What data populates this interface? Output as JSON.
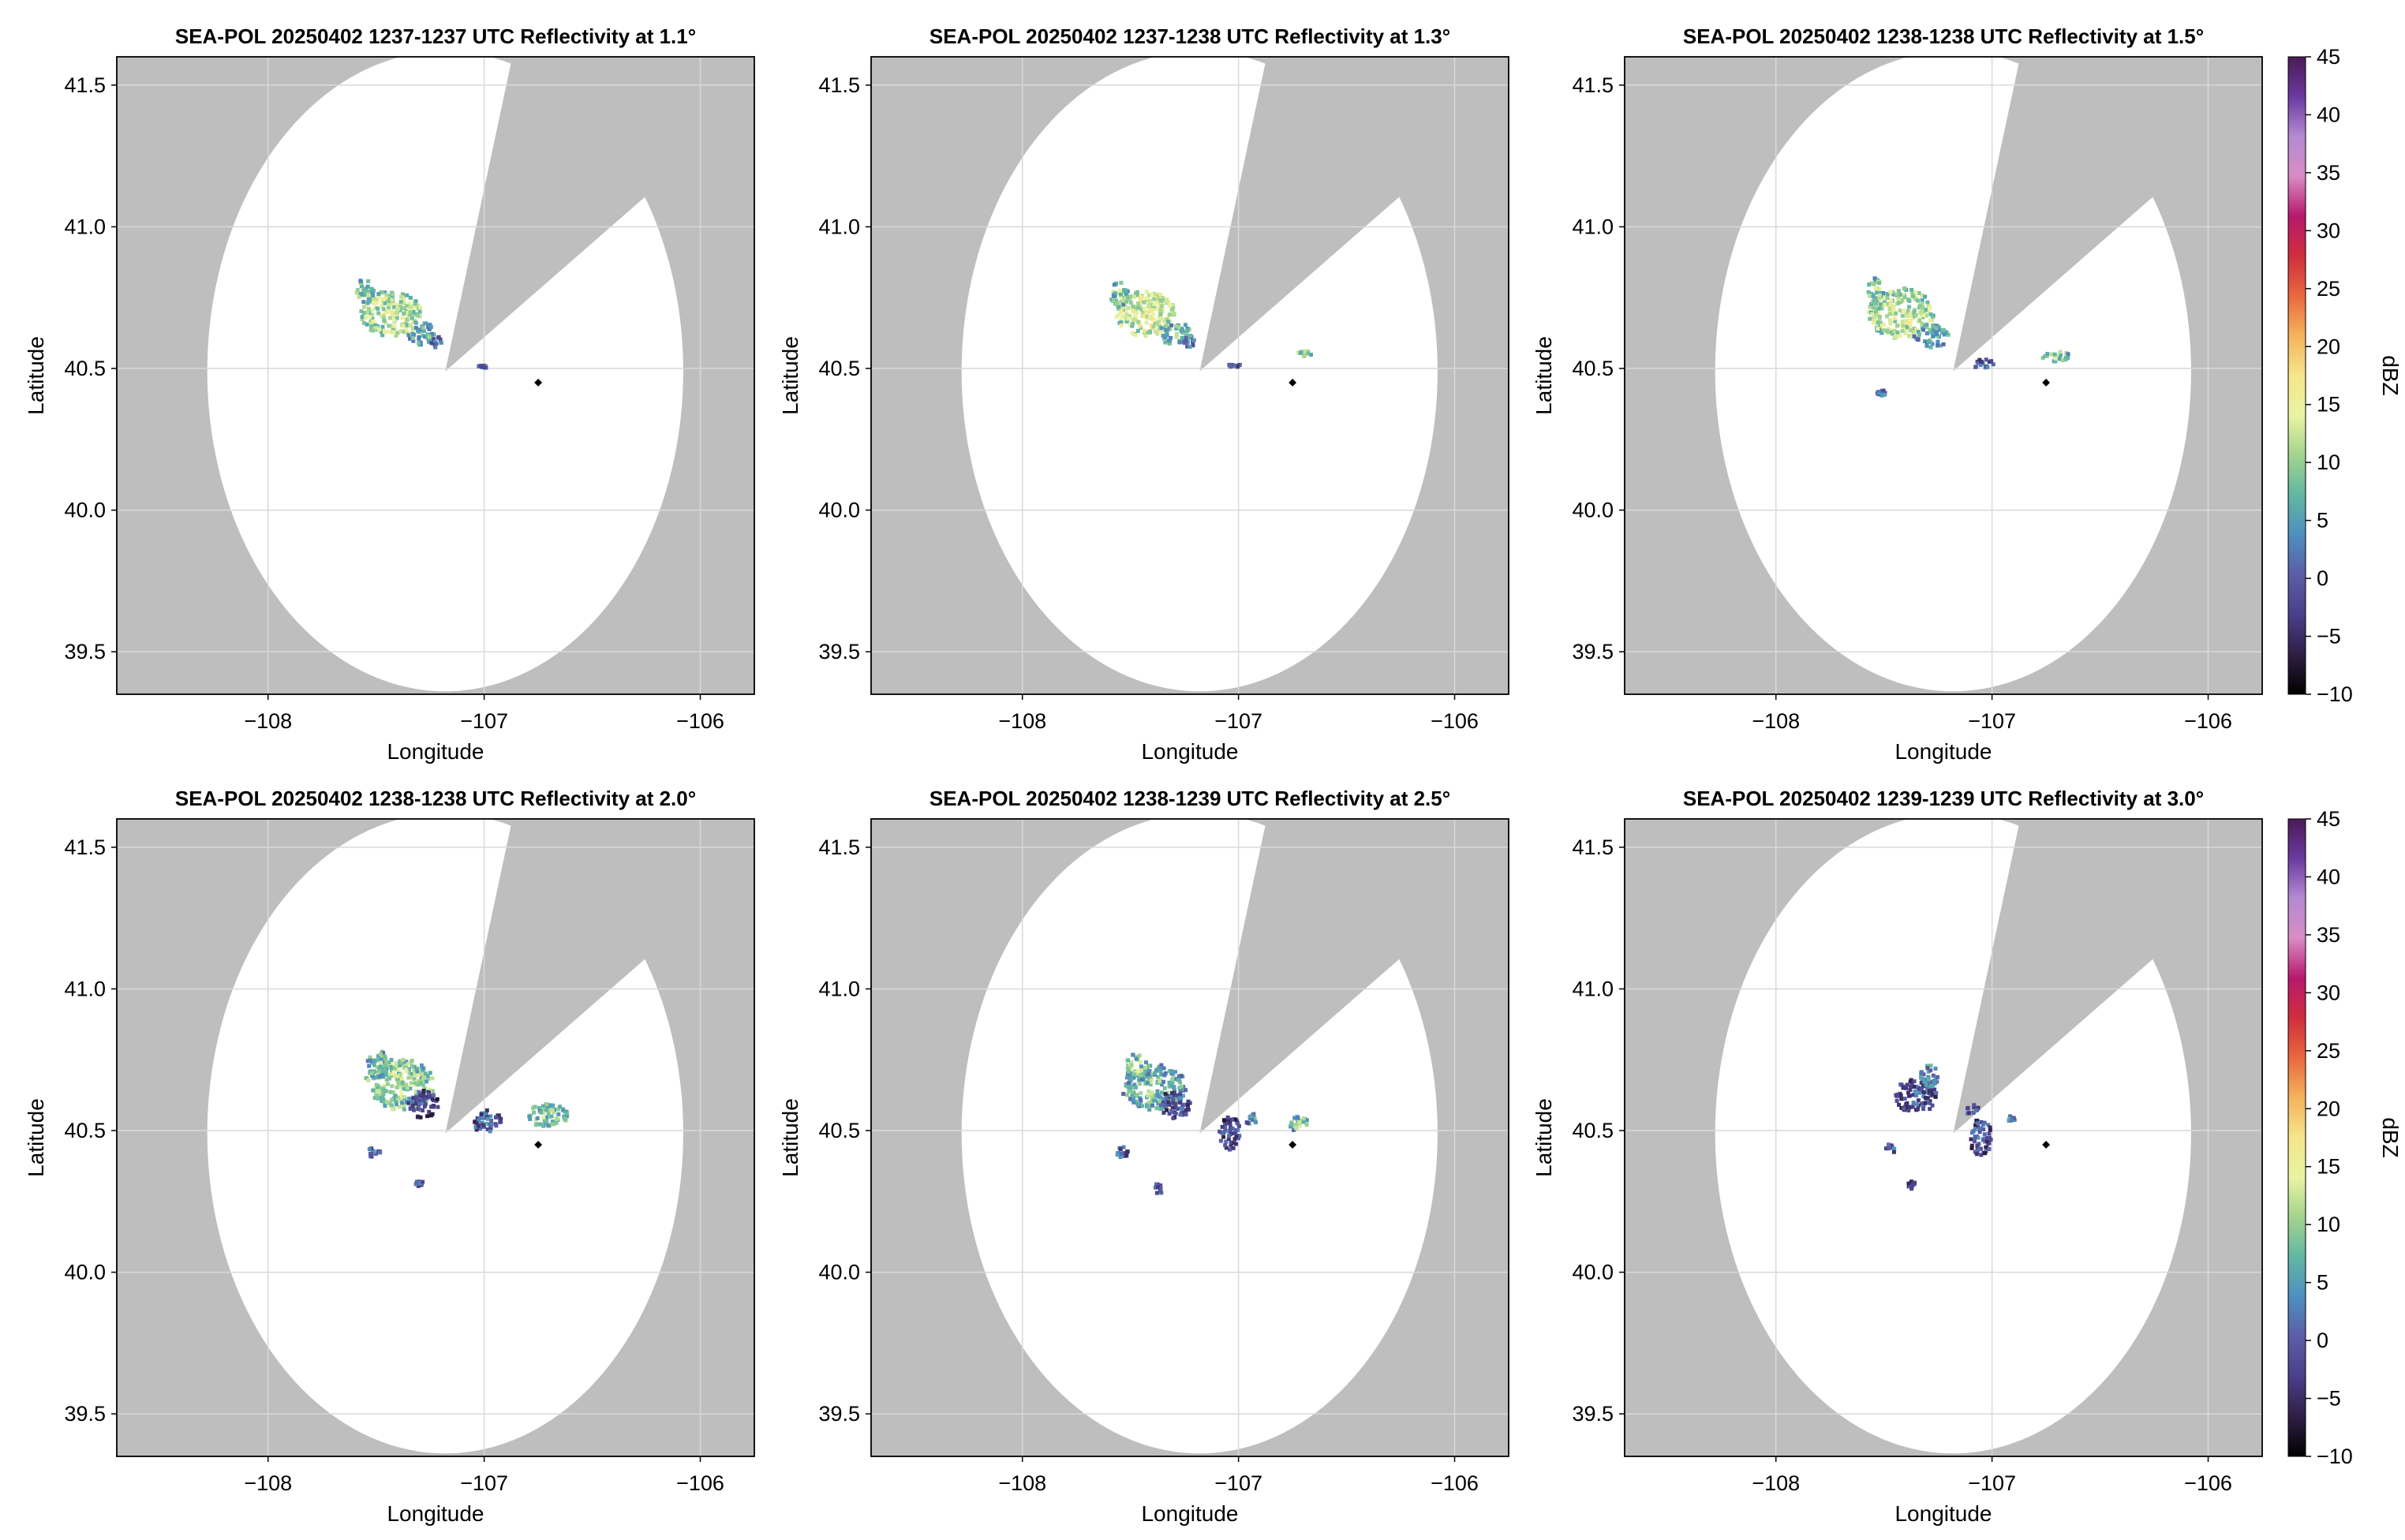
{
  "chart_data": [
    {
      "type": "map",
      "title": "SEA-POL 20250402 1237-1237 UTC Reflectivity at 1.1°",
      "xlabel": "Longitude",
      "ylabel": "Latitude",
      "xlim": [
        -108.7,
        -105.75
      ],
      "ylim": [
        39.35,
        41.6
      ],
      "xticks": [
        "−108",
        "−107",
        "−106"
      ],
      "xtick_values": [
        -108,
        -107,
        -106
      ],
      "yticks": [
        "39.5",
        "40.0",
        "40.5",
        "41.0",
        "41.5"
      ],
      "ytick_values": [
        39.5,
        40.0,
        40.5,
        41.0,
        41.5
      ],
      "grid": true,
      "radar_center": [
        -107.18,
        40.49
      ],
      "range_deg": 1.43,
      "blocked_sector_bearing_deg": [
        16,
        57
      ],
      "marker": [
        -106.75,
        40.45
      ],
      "echoes": [
        {
          "lon": -107.44,
          "lat": 40.7,
          "rx": 0.14,
          "ry": 0.08,
          "dbz": 14
        },
        {
          "lon": -107.3,
          "lat": 40.63,
          "rx": 0.07,
          "ry": 0.04,
          "dbz": 9
        },
        {
          "lon": -107.56,
          "lat": 40.78,
          "rx": 0.04,
          "ry": 0.05,
          "dbz": 11
        },
        {
          "lon": -107.23,
          "lat": 40.6,
          "rx": 0.03,
          "ry": 0.02,
          "dbz": 3
        },
        {
          "lon": -107.02,
          "lat": 40.51,
          "rx": 0.02,
          "ry": 0.008,
          "dbz": 2
        }
      ]
    },
    {
      "type": "map",
      "title": "SEA-POL 20250402 1237-1238 UTC Reflectivity at 1.3°",
      "xlabel": "Longitude",
      "ylabel": "Latitude",
      "xlim": [
        -108.7,
        -105.75
      ],
      "ylim": [
        39.35,
        41.6
      ],
      "xticks": [
        "−108",
        "−107",
        "−106"
      ],
      "xtick_values": [
        -108,
        -107,
        -106
      ],
      "yticks": [
        "39.5",
        "40.0",
        "40.5",
        "41.0",
        "41.5"
      ],
      "ytick_values": [
        39.5,
        40.0,
        40.5,
        41.0,
        41.5
      ],
      "grid": true,
      "radar_center": [
        -107.18,
        40.49
      ],
      "range_deg": 1.43,
      "blocked_sector_bearing_deg": [
        16,
        57
      ],
      "marker": [
        -106.75,
        40.45
      ],
      "echoes": [
        {
          "lon": -107.44,
          "lat": 40.7,
          "rx": 0.14,
          "ry": 0.08,
          "dbz": 15
        },
        {
          "lon": -107.3,
          "lat": 40.63,
          "rx": 0.08,
          "ry": 0.04,
          "dbz": 9
        },
        {
          "lon": -107.56,
          "lat": 40.77,
          "rx": 0.04,
          "ry": 0.05,
          "dbz": 11
        },
        {
          "lon": -107.24,
          "lat": 40.6,
          "rx": 0.03,
          "ry": 0.02,
          "dbz": 4
        },
        {
          "lon": -107.03,
          "lat": 40.52,
          "rx": 0.03,
          "ry": 0.01,
          "dbz": 2
        },
        {
          "lon": -106.7,
          "lat": 40.56,
          "rx": 0.04,
          "ry": 0.01,
          "dbz": 12
        }
      ]
    },
    {
      "type": "map",
      "title": "SEA-POL 20250402 1238-1238 UTC Reflectivity at 1.5°",
      "xlabel": "Longitude",
      "ylabel": "Latitude",
      "xlim": [
        -108.7,
        -105.75
      ],
      "ylim": [
        39.35,
        41.6
      ],
      "xticks": [
        "−108",
        "−107",
        "−106"
      ],
      "xtick_values": [
        -108,
        -107,
        -106
      ],
      "yticks": [
        "39.5",
        "40.0",
        "40.5",
        "41.0",
        "41.5"
      ],
      "ytick_values": [
        39.5,
        40.0,
        40.5,
        41.0,
        41.5
      ],
      "grid": true,
      "radar_center": [
        -107.18,
        40.49
      ],
      "range_deg": 1.43,
      "blocked_sector_bearing_deg": [
        16,
        57
      ],
      "marker": [
        -106.75,
        40.45
      ],
      "echoes": [
        {
          "lon": -107.43,
          "lat": 40.7,
          "rx": 0.15,
          "ry": 0.09,
          "dbz": 14
        },
        {
          "lon": -107.29,
          "lat": 40.62,
          "rx": 0.08,
          "ry": 0.04,
          "dbz": 8
        },
        {
          "lon": -107.55,
          "lat": 40.78,
          "rx": 0.04,
          "ry": 0.05,
          "dbz": 11
        },
        {
          "lon": -107.05,
          "lat": 40.52,
          "rx": 0.05,
          "ry": 0.02,
          "dbz": 3
        },
        {
          "lon": -106.72,
          "lat": 40.55,
          "rx": 0.07,
          "ry": 0.02,
          "dbz": 11
        },
        {
          "lon": -107.52,
          "lat": 40.42,
          "rx": 0.02,
          "ry": 0.01,
          "dbz": 5
        }
      ]
    },
    {
      "type": "map",
      "title": "SEA-POL 20250402 1238-1238 UTC Reflectivity at 2.0°",
      "xlabel": "Longitude",
      "ylabel": "Latitude",
      "xlim": [
        -108.7,
        -105.75
      ],
      "ylim": [
        39.35,
        41.6
      ],
      "xticks": [
        "−108",
        "−107",
        "−106"
      ],
      "xtick_values": [
        -108,
        -107,
        -106
      ],
      "yticks": [
        "39.5",
        "40.0",
        "40.5",
        "41.0",
        "41.5"
      ],
      "ytick_values": [
        39.5,
        40.0,
        40.5,
        41.0,
        41.5
      ],
      "grid": true,
      "radar_center": [
        -107.18,
        40.49
      ],
      "range_deg": 1.43,
      "blocked_sector_bearing_deg": [
        16,
        57
      ],
      "marker": [
        -106.75,
        40.45
      ],
      "echoes": [
        {
          "lon": -107.4,
          "lat": 40.67,
          "rx": 0.16,
          "ry": 0.09,
          "dbz": 12
        },
        {
          "lon": -107.29,
          "lat": 40.6,
          "rx": 0.07,
          "ry": 0.05,
          "dbz": 1
        },
        {
          "lon": -107.5,
          "lat": 40.74,
          "rx": 0.05,
          "ry": 0.05,
          "dbz": 10
        },
        {
          "lon": -107.0,
          "lat": 40.54,
          "rx": 0.07,
          "ry": 0.04,
          "dbz": 2
        },
        {
          "lon": -106.72,
          "lat": 40.56,
          "rx": 0.1,
          "ry": 0.04,
          "dbz": 10
        },
        {
          "lon": -107.52,
          "lat": 40.43,
          "rx": 0.03,
          "ry": 0.02,
          "dbz": 4
        },
        {
          "lon": -107.31,
          "lat": 40.32,
          "rx": 0.02,
          "ry": 0.01,
          "dbz": 2
        }
      ]
    },
    {
      "type": "map",
      "title": "SEA-POL 20250402 1238-1239 UTC Reflectivity at 2.5°",
      "xlabel": "Longitude",
      "ylabel": "Latitude",
      "xlim": [
        -108.7,
        -105.75
      ],
      "ylim": [
        39.35,
        41.6
      ],
      "xticks": [
        "−108",
        "−107",
        "−106"
      ],
      "xtick_values": [
        -108,
        -107,
        -106
      ],
      "yticks": [
        "39.5",
        "40.0",
        "40.5",
        "41.0",
        "41.5"
      ],
      "ytick_values": [
        39.5,
        40.0,
        40.5,
        41.0,
        41.5
      ],
      "grid": true,
      "radar_center": [
        -107.18,
        40.49
      ],
      "range_deg": 1.43,
      "blocked_sector_bearing_deg": [
        16,
        57
      ],
      "marker": [
        -106.75,
        40.45
      ],
      "echoes": [
        {
          "lon": -107.4,
          "lat": 40.66,
          "rx": 0.15,
          "ry": 0.08,
          "dbz": 9
        },
        {
          "lon": -107.3,
          "lat": 40.6,
          "rx": 0.07,
          "ry": 0.05,
          "dbz": 1
        },
        {
          "lon": -107.48,
          "lat": 40.73,
          "rx": 0.05,
          "ry": 0.05,
          "dbz": 11
        },
        {
          "lon": -107.05,
          "lat": 40.5,
          "rx": 0.05,
          "ry": 0.06,
          "dbz": 1
        },
        {
          "lon": -106.95,
          "lat": 40.55,
          "rx": 0.03,
          "ry": 0.02,
          "dbz": 6
        },
        {
          "lon": -106.73,
          "lat": 40.53,
          "rx": 0.05,
          "ry": 0.03,
          "dbz": 10
        },
        {
          "lon": -107.55,
          "lat": 40.43,
          "rx": 0.03,
          "ry": 0.02,
          "dbz": 3
        },
        {
          "lon": -107.38,
          "lat": 40.3,
          "rx": 0.02,
          "ry": 0.02,
          "dbz": 1
        }
      ]
    },
    {
      "type": "map",
      "title": "SEA-POL 20250402 1239-1239 UTC Reflectivity at 3.0°",
      "xlabel": "Longitude",
      "ylabel": "Latitude",
      "xlim": [
        -108.7,
        -105.75
      ],
      "ylim": [
        39.35,
        41.6
      ],
      "xticks": [
        "−108",
        "−107",
        "−106"
      ],
      "xtick_values": [
        -108,
        -107,
        -106
      ],
      "yticks": [
        "39.5",
        "40.0",
        "40.5",
        "41.0",
        "41.5"
      ],
      "ytick_values": [
        39.5,
        40.0,
        40.5,
        41.0,
        41.5
      ],
      "grid": true,
      "radar_center": [
        -107.18,
        40.49
      ],
      "range_deg": 1.43,
      "blocked_sector_bearing_deg": [
        16,
        57
      ],
      "marker": [
        -106.75,
        40.45
      ],
      "echoes": [
        {
          "lon": -107.36,
          "lat": 40.63,
          "rx": 0.1,
          "ry": 0.06,
          "dbz": 1
        },
        {
          "lon": -107.3,
          "lat": 40.7,
          "rx": 0.04,
          "ry": 0.05,
          "dbz": 6
        },
        {
          "lon": -107.06,
          "lat": 40.48,
          "rx": 0.05,
          "ry": 0.07,
          "dbz": 1
        },
        {
          "lon": -107.1,
          "lat": 40.58,
          "rx": 0.03,
          "ry": 0.02,
          "dbz": 3
        },
        {
          "lon": -106.92,
          "lat": 40.55,
          "rx": 0.02,
          "ry": 0.01,
          "dbz": 4
        },
        {
          "lon": -107.48,
          "lat": 40.44,
          "rx": 0.02,
          "ry": 0.02,
          "dbz": 4
        },
        {
          "lon": -107.38,
          "lat": 40.31,
          "rx": 0.02,
          "ry": 0.02,
          "dbz": 0
        }
      ]
    }
  ],
  "colorbar": {
    "label": "dBZ",
    "min": -10,
    "max": 45,
    "ticks": [
      "45",
      "40",
      "35",
      "30",
      "25",
      "20",
      "15",
      "10",
      "5",
      "0",
      "−5",
      "−10"
    ],
    "tick_values": [
      45,
      40,
      35,
      30,
      25,
      20,
      15,
      10,
      5,
      0,
      -5,
      -10
    ],
    "stops": [
      "#000000",
      "#2f1f45",
      "#4a3f8a",
      "#5b5ea6",
      "#4e8fbf",
      "#62b7a3",
      "#a3d38e",
      "#e9f4a3",
      "#f6e58a",
      "#f3b35c",
      "#e9683f",
      "#cf2e3d",
      "#b7196d",
      "#d98cc4",
      "#b48ad2",
      "#6a3a9f",
      "#4b1a57"
    ]
  },
  "colors": {
    "blocked": "#bebebe",
    "coverage": "#ffffff",
    "grid": "#d9d9d9",
    "marker": "#000000"
  }
}
